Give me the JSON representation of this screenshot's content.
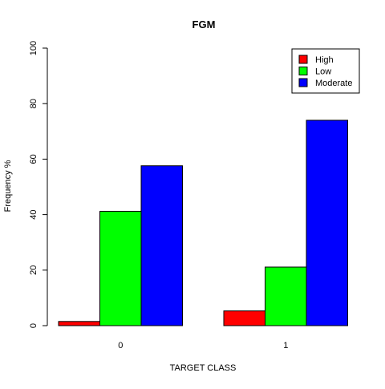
{
  "chart_data": {
    "type": "bar",
    "title": "FGM",
    "xlabel": "TARGET CLASS",
    "ylabel": "Frequency %",
    "categories": [
      "0",
      "1"
    ],
    "series": [
      {
        "name": "High",
        "color": "#ff0000",
        "values": [
          1.5,
          5.3
        ]
      },
      {
        "name": "Low",
        "color": "#00ff00",
        "values": [
          41.2,
          21.1
        ]
      },
      {
        "name": "Moderate",
        "color": "#0000ff",
        "values": [
          57.6,
          74.0
        ]
      }
    ],
    "ylim": [
      0,
      100
    ],
    "yticks": [
      "0",
      "20",
      "40",
      "60",
      "80",
      "100"
    ],
    "grid": false,
    "legend_position": "top-right"
  }
}
